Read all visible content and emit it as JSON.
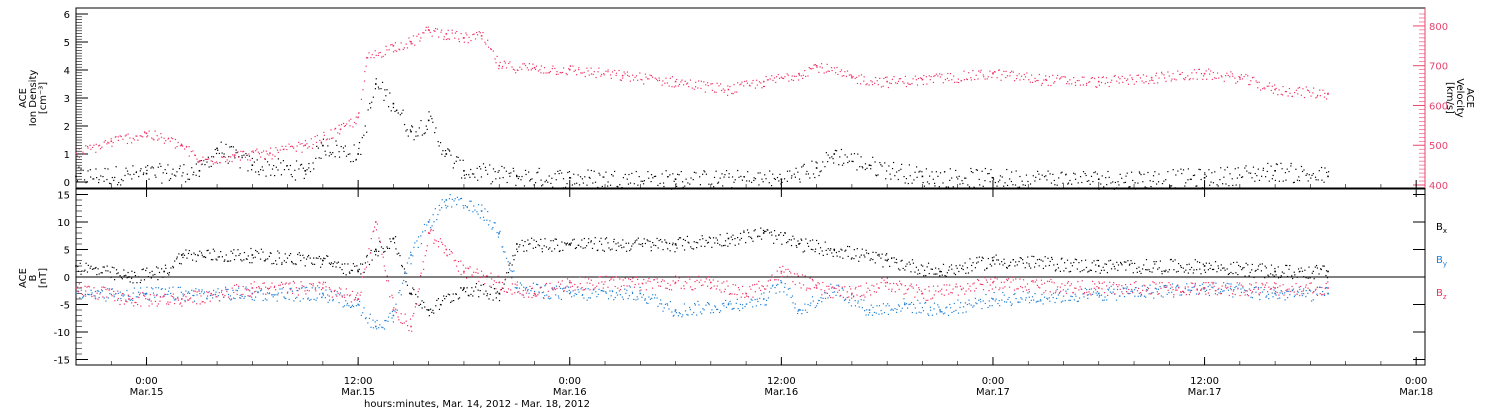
{
  "colors": {
    "black": "#000000",
    "pink": "#ee3366",
    "blue": "#1e7fd6",
    "axis": "#000000",
    "velocity_axis": "#e8456f"
  },
  "x_axis": {
    "title": "hours:minutes, Mar. 14, 2012 - Mar. 18, 2012",
    "range": [
      "2012-03-14T20:00",
      "2012-03-18T00:30"
    ],
    "ticks": [
      {
        "time": "2012-03-15T00:00",
        "line1": "0:00",
        "line2": "Mar.15"
      },
      {
        "time": "2012-03-15T12:00",
        "line1": "12:00",
        "line2": "Mar.15"
      },
      {
        "time": "2012-03-16T00:00",
        "line1": "0:00",
        "line2": "Mar.16"
      },
      {
        "time": "2012-03-16T12:00",
        "line1": "12:00",
        "line2": "Mar.16"
      },
      {
        "time": "2012-03-17T00:00",
        "line1": "0:00",
        "line2": "Mar.17"
      },
      {
        "time": "2012-03-17T12:00",
        "line1": "12:00",
        "line2": "Mar.17"
      },
      {
        "time": "2012-03-18T00:00",
        "line1": "0:00",
        "line2": "Mar.18"
      }
    ]
  },
  "chart_data": [
    {
      "type": "scatter",
      "panel": "top",
      "ylabel_left": [
        "ACE",
        "Ion Density",
        "[cm⁻³]"
      ],
      "ylabel_right": [
        "ACE",
        "Velocity",
        "[km/s]"
      ],
      "ylim_left": [
        0,
        6
      ],
      "ylim_right": [
        400,
        830
      ],
      "yticks_left": [
        "0",
        "1",
        "2",
        "3",
        "4",
        "5",
        "6"
      ],
      "yticks_right": [
        "400",
        "500",
        "600",
        "700",
        "800"
      ],
      "series": [
        {
          "color": "black",
          "axis": "left",
          "points": [
            [
              "2012-03-14T20:00",
              0.2
            ],
            [
              "2012-03-15T00:00",
              0.3
            ],
            [
              "2012-03-15T03:00",
              0.4
            ],
            [
              "2012-03-15T04:00",
              1.2
            ],
            [
              "2012-03-15T06:00",
              0.6
            ],
            [
              "2012-03-15T09:00",
              0.4
            ],
            [
              "2012-03-15T10:00",
              1.3
            ],
            [
              "2012-03-15T12:00",
              1.0
            ],
            [
              "2012-03-15T13:00",
              3.5
            ],
            [
              "2012-03-15T14:00",
              2.8
            ],
            [
              "2012-03-15T15:00",
              1.8
            ],
            [
              "2012-03-15T16:00",
              2.2
            ],
            [
              "2012-03-15T17:00",
              1.0
            ],
            [
              "2012-03-15T18:00",
              0.4
            ],
            [
              "2012-03-15T21:00",
              0.2
            ],
            [
              "2012-03-16T00:00",
              0.15
            ],
            [
              "2012-03-16T06:00",
              0.1
            ],
            [
              "2012-03-16T12:00",
              0.1
            ],
            [
              "2012-03-16T14:00",
              0.5
            ],
            [
              "2012-03-16T15:00",
              1.0
            ],
            [
              "2012-03-16T17:00",
              0.6
            ],
            [
              "2012-03-16T20:00",
              0.2
            ],
            [
              "2012-03-17T00:00",
              0.15
            ],
            [
              "2012-03-17T06:00",
              0.1
            ],
            [
              "2012-03-17T12:00",
              0.15
            ],
            [
              "2012-03-17T16:00",
              0.4
            ],
            [
              "2012-03-17T19:00",
              0.2
            ]
          ]
        },
        {
          "color": "pink",
          "axis": "right",
          "points": [
            [
              "2012-03-14T20:00",
              480
            ],
            [
              "2012-03-14T22:00",
              510
            ],
            [
              "2012-03-15T00:00",
              530
            ],
            [
              "2012-03-15T02:00",
              500
            ],
            [
              "2012-03-15T03:00",
              460
            ],
            [
              "2012-03-15T05:00",
              475
            ],
            [
              "2012-03-15T07:00",
              480
            ],
            [
              "2012-03-15T09:00",
              500
            ],
            [
              "2012-03-15T11:00",
              540
            ],
            [
              "2012-03-15T12:00",
              570
            ],
            [
              "2012-03-15T12:30",
              720
            ],
            [
              "2012-03-15T14:00",
              750
            ],
            [
              "2012-03-15T15:00",
              760
            ],
            [
              "2012-03-15T16:00",
              790
            ],
            [
              "2012-03-15T17:00",
              780
            ],
            [
              "2012-03-15T18:00",
              770
            ],
            [
              "2012-03-15T19:00",
              775
            ],
            [
              "2012-03-15T20:00",
              700
            ],
            [
              "2012-03-15T22:00",
              695
            ],
            [
              "2012-03-16T00:00",
              690
            ],
            [
              "2012-03-16T03:00",
              675
            ],
            [
              "2012-03-16T06:00",
              660
            ],
            [
              "2012-03-16T09:00",
              640
            ],
            [
              "2012-03-16T11:00",
              660
            ],
            [
              "2012-03-16T13:00",
              680
            ],
            [
              "2012-03-16T14:00",
              700
            ],
            [
              "2012-03-16T16:00",
              670
            ],
            [
              "2012-03-16T18:00",
              660
            ],
            [
              "2012-03-16T20:00",
              665
            ],
            [
              "2012-03-17T00:00",
              680
            ],
            [
              "2012-03-17T03:00",
              665
            ],
            [
              "2012-03-17T06:00",
              660
            ],
            [
              "2012-03-17T09:00",
              670
            ],
            [
              "2012-03-17T12:00",
              680
            ],
            [
              "2012-03-17T14:00",
              670
            ],
            [
              "2012-03-17T16:00",
              640
            ],
            [
              "2012-03-17T19:00",
              630
            ]
          ]
        }
      ]
    },
    {
      "type": "scatter",
      "panel": "bottom",
      "ylabel_left": [
        "ACE",
        "B",
        "[nT]"
      ],
      "ylim": [
        -16,
        16
      ],
      "yticks": [
        "-15",
        "-10",
        "-5",
        "0",
        "5",
        "10",
        "15"
      ],
      "zero_line": true,
      "legend_placement": "right",
      "legend": [
        {
          "label": "B",
          "sub": "x",
          "color": "black"
        },
        {
          "label": "B",
          "sub": "y",
          "color": "blue"
        },
        {
          "label": "B",
          "sub": "z",
          "color": "pink"
        }
      ],
      "series": [
        {
          "name": "Bx",
          "color": "black",
          "points": [
            [
              "2012-03-14T20:00",
              2
            ],
            [
              "2012-03-14T23:00",
              0
            ],
            [
              "2012-03-15T01:00",
              1
            ],
            [
              "2012-03-15T02:00",
              4
            ],
            [
              "2012-03-15T06:00",
              4
            ],
            [
              "2012-03-15T10:00",
              3
            ],
            [
              "2012-03-15T12:00",
              1
            ],
            [
              "2012-03-15T13:00",
              5
            ],
            [
              "2012-03-15T14:00",
              7
            ],
            [
              "2012-03-15T15:00",
              -3
            ],
            [
              "2012-03-15T16:00",
              -6
            ],
            [
              "2012-03-15T18:00",
              -2
            ],
            [
              "2012-03-15T20:00",
              -3
            ],
            [
              "2012-03-15T21:00",
              6
            ],
            [
              "2012-03-16T00:00",
              6
            ],
            [
              "2012-03-16T06:00",
              6
            ],
            [
              "2012-03-16T09:00",
              7
            ],
            [
              "2012-03-16T11:00",
              8
            ],
            [
              "2012-03-16T13:00",
              6
            ],
            [
              "2012-03-16T15:00",
              5
            ],
            [
              "2012-03-16T18:00",
              3
            ],
            [
              "2012-03-16T21:00",
              1
            ],
            [
              "2012-03-17T00:00",
              3
            ],
            [
              "2012-03-17T06:00",
              2
            ],
            [
              "2012-03-17T12:00",
              2
            ],
            [
              "2012-03-17T16:00",
              1
            ],
            [
              "2012-03-17T19:00",
              1
            ]
          ]
        },
        {
          "name": "By",
          "color": "blue",
          "points": [
            [
              "2012-03-14T20:00",
              -3
            ],
            [
              "2012-03-15T00:00",
              -3
            ],
            [
              "2012-03-15T06:00",
              -3
            ],
            [
              "2012-03-15T10:00",
              -3
            ],
            [
              "2012-03-15T12:00",
              -5
            ],
            [
              "2012-03-15T13:00",
              -9
            ],
            [
              "2012-03-15T14:00",
              -7
            ],
            [
              "2012-03-15T15:00",
              4
            ],
            [
              "2012-03-15T16:00",
              10
            ],
            [
              "2012-03-15T17:00",
              14
            ],
            [
              "2012-03-15T19:00",
              12
            ],
            [
              "2012-03-15T20:00",
              8
            ],
            [
              "2012-03-15T21:00",
              -2
            ],
            [
              "2012-03-16T00:00",
              -3
            ],
            [
              "2012-03-16T04:00",
              -3
            ],
            [
              "2012-03-16T06:00",
              -6
            ],
            [
              "2012-03-16T09:00",
              -5
            ],
            [
              "2012-03-16T11:00",
              -4
            ],
            [
              "2012-03-16T12:00",
              -1
            ],
            [
              "2012-03-16T13:00",
              -6
            ],
            [
              "2012-03-16T15:00",
              -2
            ],
            [
              "2012-03-16T17:00",
              -6
            ],
            [
              "2012-03-16T19:00",
              -5
            ],
            [
              "2012-03-16T21:00",
              -6
            ],
            [
              "2012-03-17T00:00",
              -4
            ],
            [
              "2012-03-17T06:00",
              -3
            ],
            [
              "2012-03-17T12:00",
              -2
            ],
            [
              "2012-03-17T16:00",
              -3
            ],
            [
              "2012-03-17T19:00",
              -3
            ]
          ]
        },
        {
          "name": "Bz",
          "color": "pink",
          "points": [
            [
              "2012-03-14T20:00",
              -2
            ],
            [
              "2012-03-14T23:00",
              -4
            ],
            [
              "2012-03-15T02:00",
              -4
            ],
            [
              "2012-03-15T06:00",
              -2
            ],
            [
              "2012-03-15T10:00",
              -2
            ],
            [
              "2012-03-15T12:00",
              -4
            ],
            [
              "2012-03-15T13:00",
              10
            ],
            [
              "2012-03-15T14:00",
              -6
            ],
            [
              "2012-03-15T15:00",
              -9
            ],
            [
              "2012-03-15T16:00",
              8
            ],
            [
              "2012-03-15T17:00",
              5
            ],
            [
              "2012-03-15T18:00",
              1
            ],
            [
              "2012-03-15T20:00",
              -1
            ],
            [
              "2012-03-15T22:00",
              -3
            ],
            [
              "2012-03-16T00:00",
              -1
            ],
            [
              "2012-03-16T06:00",
              -1
            ],
            [
              "2012-03-16T08:00",
              -1
            ],
            [
              "2012-03-16T10:00",
              -3
            ],
            [
              "2012-03-16T12:00",
              1
            ],
            [
              "2012-03-16T14:00",
              -2
            ],
            [
              "2012-03-16T16:00",
              -3
            ],
            [
              "2012-03-16T18:00",
              -1
            ],
            [
              "2012-03-16T20:00",
              -3
            ],
            [
              "2012-03-17T00:00",
              -1
            ],
            [
              "2012-03-17T06:00",
              -2
            ],
            [
              "2012-03-17T12:00",
              -2
            ],
            [
              "2012-03-17T16:00",
              -2
            ],
            [
              "2012-03-17T19:00",
              -2
            ]
          ]
        }
      ]
    }
  ]
}
